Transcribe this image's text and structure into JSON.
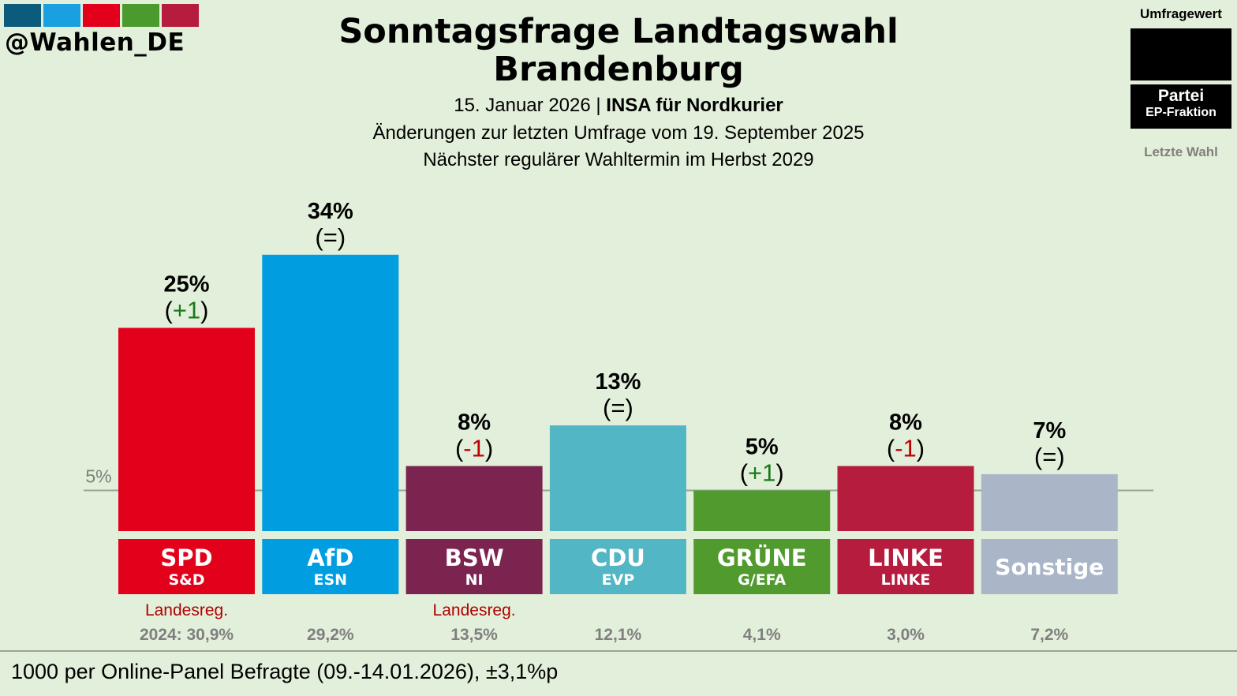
{
  "header": {
    "handle": "@Wahlen_DE",
    "logo_colors": [
      "#0b5b7c",
      "#1aa0e0",
      "#e2001a",
      "#4a9a2e",
      "#b51c3e"
    ],
    "title_line1": "Sonntagsfrage Landtagswahl",
    "title_line2": "Brandenburg",
    "date": "15. Januar 2026 |",
    "institute": "INSA für Nordkurier",
    "changes_note": "Änderungen zur letzten Umfrage vom 19. September 2025",
    "next_election": "Nächster regulärer Wahltermin im Herbst 2029"
  },
  "legend": {
    "poll_value_label": "Umfragewert",
    "party_label": "Partei",
    "group_label": "EP-Fraktion",
    "last_election_label": "Letzte Wahl"
  },
  "footer": {
    "note": "1000 per Online-Panel Befragte (09.-14.01.2026), ±3,1%p"
  },
  "chart_data": {
    "type": "bar",
    "title": "Sonntagsfrage Landtagswahl Brandenburg",
    "categories": [
      "SPD",
      "AfD",
      "BSW",
      "CDU",
      "GRÜNE",
      "LINKE",
      "Sonstige"
    ],
    "values": [
      25,
      34,
      8,
      13,
      5,
      8,
      7
    ],
    "value_labels": [
      "25%",
      "34%",
      "8%",
      "13%",
      "5%",
      "8%",
      "7%"
    ],
    "changes": [
      "+1",
      "=",
      "-1",
      "=",
      "+1",
      "-1",
      "="
    ],
    "ep_groups": [
      "S&D",
      "ESN",
      "NI",
      "EVP",
      "G/EFA",
      "LINKE",
      ""
    ],
    "colors": [
      "#e2001a",
      "#009ee0",
      "#7b2450",
      "#52b6c4",
      "#509a2e",
      "#b51c3e",
      "#aab6c8"
    ],
    "government_label": "Landesreg.",
    "in_government": [
      true,
      false,
      true,
      false,
      false,
      false,
      false
    ],
    "last_election_labels": [
      "2024: 30,9%",
      "29,2%",
      "13,5%",
      "12,1%",
      "4,1%",
      "3,0%",
      "7,2%"
    ],
    "last_election_values": [
      30.9,
      29.2,
      13.5,
      12.1,
      4.1,
      3.0,
      7.2
    ],
    "threshold": 5,
    "threshold_label": "5%",
    "ylim": [
      0,
      34
    ],
    "xlabel": "",
    "ylabel": "",
    "grid": false,
    "change_colors": {
      "up": "#1a7a1a",
      "down": "#c00000",
      "same": "#000000"
    },
    "label_colors": {
      "government": "#b00000",
      "last_election": "#7f7f7f"
    }
  }
}
